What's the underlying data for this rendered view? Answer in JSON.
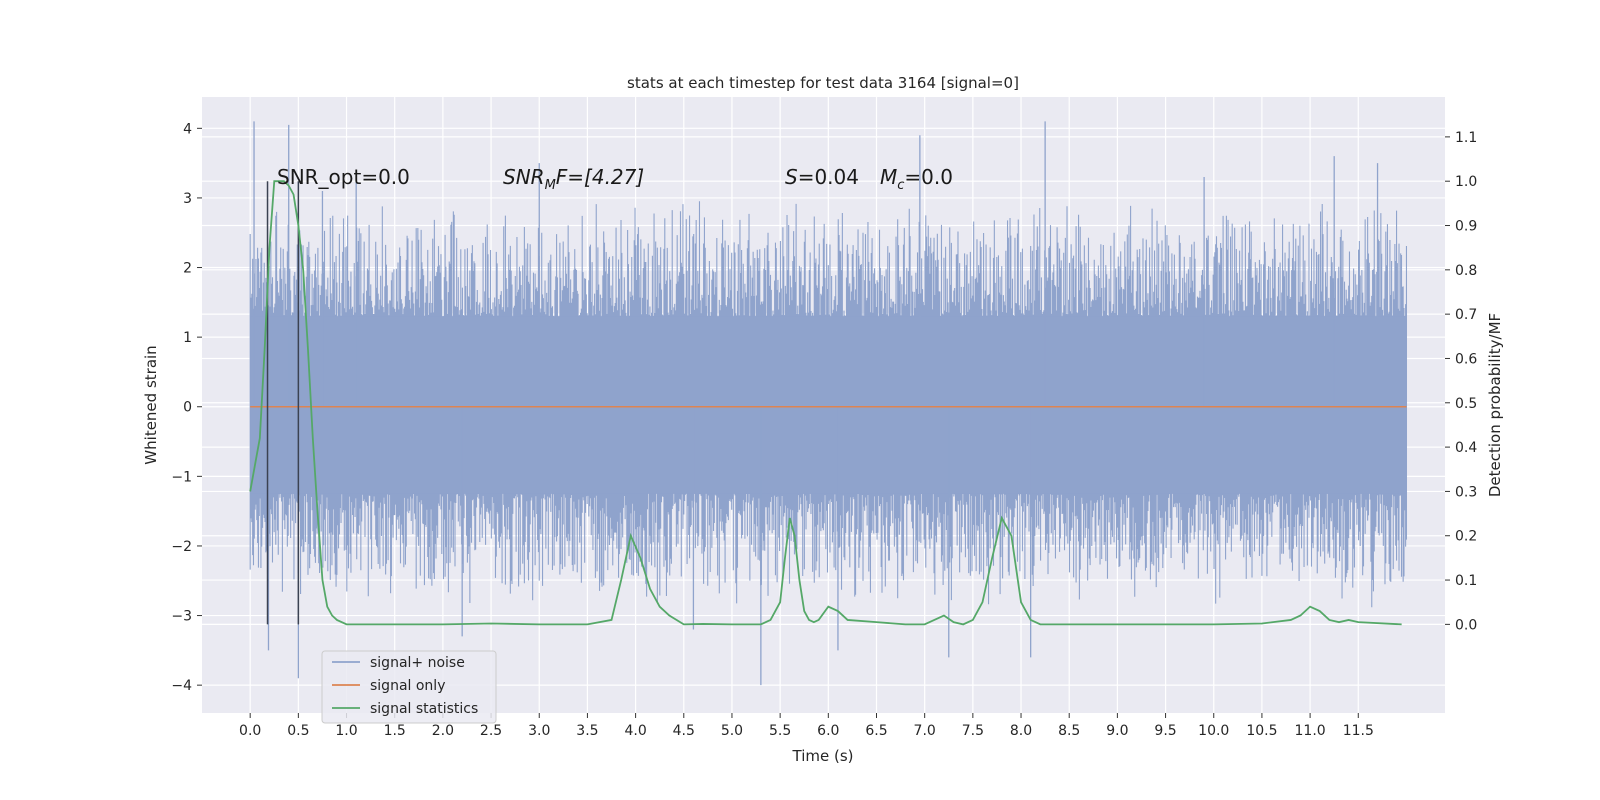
{
  "chart_data": {
    "type": "line",
    "title": "stats at each timestep for test data 3164 [signal=0]",
    "xlabel": "Time (s)",
    "ylabel": "Whitened strain",
    "y2label": "Detection probability/MF",
    "xlim": [
      -0.5,
      12.4
    ],
    "ylim": [
      -4.4,
      4.45
    ],
    "y2lim": [
      -0.2,
      1.19
    ],
    "x_ticks": [
      0.0,
      0.5,
      1.0,
      1.5,
      2.0,
      2.5,
      3.0,
      3.5,
      4.0,
      4.5,
      5.0,
      5.5,
      6.0,
      6.5,
      7.0,
      7.5,
      8.0,
      8.5,
      9.0,
      9.5,
      10.0,
      10.5,
      11.0,
      11.5
    ],
    "x_tick_labels": [
      "0.0",
      "0.5",
      "1.0",
      "1.5",
      "2.0",
      "2.5",
      "3.0",
      "3.5",
      "4.0",
      "4.5",
      "5.0",
      "5.5",
      "6.0",
      "6.5",
      "7.0",
      "7.5",
      "8.0",
      "8.5",
      "9.0",
      "9.5",
      "10.0",
      "10.5",
      "11.0",
      "11.5"
    ],
    "y_ticks": [
      4,
      3,
      2,
      1,
      0,
      -1,
      -2,
      -3,
      -4
    ],
    "y_tick_labels": [
      "4",
      "3",
      "2",
      "1",
      "0",
      "−1",
      "−2",
      "−3",
      "−4"
    ],
    "y2_ticks": [
      1.1,
      1.0,
      0.9,
      0.8,
      0.7,
      0.6,
      0.5,
      0.4,
      0.3,
      0.2,
      0.1,
      0.0
    ],
    "y2_tick_labels": [
      "1.1",
      "1.0",
      "0.9",
      "0.8",
      "0.7",
      "0.6",
      "0.5",
      "0.4",
      "0.3",
      "0.2",
      "0.1",
      "0.0"
    ],
    "grid": true,
    "legend_position": "lower-left",
    "annotations": {
      "snr_opt": "SNR_opt=0.0",
      "snr_mf_main": "SNR",
      "snr_mf_sub": "M",
      "snr_mf_rest": "F=[4.27]",
      "s_main": "S",
      "s_rest": "=0.04",
      "mc_main": "M",
      "mc_sub": "c",
      "mc_rest": "=0.0"
    },
    "vertical_markers_x": [
      0.18,
      0.5
    ],
    "noise": {
      "name": "signal+ noise",
      "color": "#8fa3cc",
      "x_start": 0.0,
      "x_end": 12.0,
      "band_low": -1.25,
      "band_high": 1.3,
      "typical_peak_high": 2.4,
      "typical_peak_low": -2.3,
      "spikes": [
        {
          "x": 0.04,
          "y": 4.1
        },
        {
          "x": 0.4,
          "y": 4.05
        },
        {
          "x": 0.19,
          "y": -3.5
        },
        {
          "x": 0.5,
          "y": -3.9
        },
        {
          "x": 6.95,
          "y": 3.9
        },
        {
          "x": 8.25,
          "y": 4.1
        },
        {
          "x": 8.1,
          "y": -3.6
        },
        {
          "x": 11.25,
          "y": 3.6
        },
        {
          "x": 5.3,
          "y": -4.0
        },
        {
          "x": 6.1,
          "y": -3.5
        },
        {
          "x": 7.25,
          "y": -3.6
        },
        {
          "x": 11.7,
          "y": 3.5
        },
        {
          "x": 3.0,
          "y": 3.5
        },
        {
          "x": 1.1,
          "y": 3.3
        },
        {
          "x": 0.75,
          "y": 3.1
        },
        {
          "x": 9.9,
          "y": 3.3
        },
        {
          "x": 4.6,
          "y": -3.2
        },
        {
          "x": 2.2,
          "y": -3.3
        }
      ]
    },
    "signal_only": {
      "name": "signal only",
      "color": "#dd8452",
      "x": [
        0.0,
        12.0
      ],
      "y": [
        0.0,
        0.0
      ]
    },
    "statistics": {
      "name": "signal statistics",
      "color": "#55a868",
      "x": [
        0.0,
        0.1,
        0.15,
        0.2,
        0.25,
        0.3,
        0.35,
        0.4,
        0.45,
        0.5,
        0.55,
        0.6,
        0.65,
        0.7,
        0.75,
        0.8,
        0.85,
        0.9,
        1.0,
        1.5,
        2.0,
        2.5,
        3.0,
        3.5,
        3.75,
        3.85,
        3.95,
        4.05,
        4.15,
        4.25,
        4.35,
        4.5,
        4.7,
        5.0,
        5.3,
        5.4,
        5.5,
        5.55,
        5.6,
        5.65,
        5.7,
        5.75,
        5.8,
        5.85,
        5.9,
        6.0,
        6.1,
        6.2,
        6.5,
        6.8,
        7.0,
        7.1,
        7.2,
        7.3,
        7.4,
        7.5,
        7.6,
        7.7,
        7.8,
        7.9,
        8.0,
        8.1,
        8.2,
        8.5,
        9.0,
        10.0,
        10.5,
        10.8,
        10.9,
        11.0,
        11.1,
        11.2,
        11.3,
        11.4,
        11.5,
        11.95
      ],
      "y": [
        0.3,
        0.42,
        0.62,
        0.85,
        1.0,
        1.0,
        1.0,
        0.99,
        0.97,
        0.9,
        0.8,
        0.62,
        0.42,
        0.25,
        0.1,
        0.04,
        0.02,
        0.01,
        0.0,
        0.0,
        0.0,
        0.002,
        0.0,
        0.0,
        0.01,
        0.1,
        0.2,
        0.15,
        0.08,
        0.04,
        0.02,
        0.0,
        0.001,
        0.0,
        0.0,
        0.01,
        0.05,
        0.15,
        0.24,
        0.2,
        0.1,
        0.03,
        0.01,
        0.005,
        0.01,
        0.04,
        0.03,
        0.01,
        0.005,
        0.0,
        0.0,
        0.01,
        0.02,
        0.005,
        0.0,
        0.01,
        0.05,
        0.15,
        0.24,
        0.2,
        0.05,
        0.01,
        0.0,
        0.0,
        0.0,
        0.0,
        0.002,
        0.01,
        0.02,
        0.04,
        0.03,
        0.01,
        0.005,
        0.01,
        0.005,
        0.0
      ]
    }
  }
}
